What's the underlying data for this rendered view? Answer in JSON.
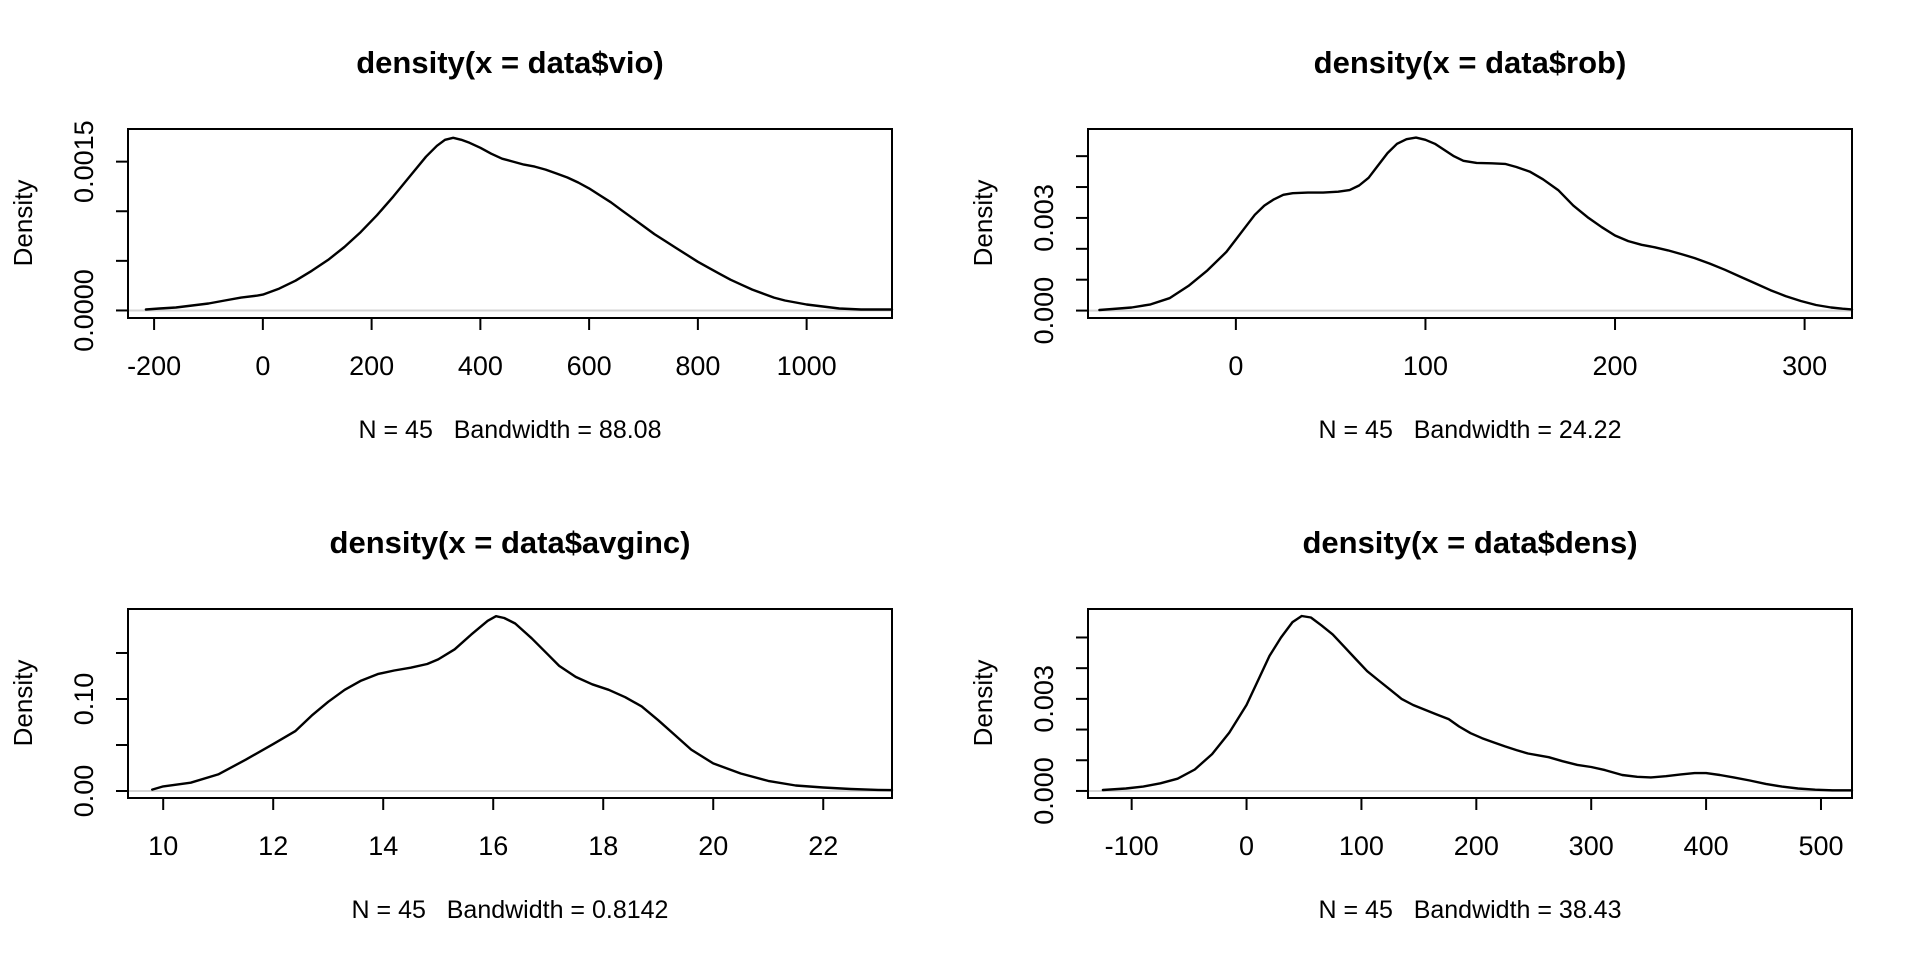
{
  "figure": {
    "background": "#ffffff",
    "curve_color": "#000000",
    "box_color": "#000000",
    "zero_line_color": "#d3d3d3",
    "text_color": "#000000"
  },
  "chart_data": [
    {
      "type": "line",
      "title": "density(x = data$vio)",
      "xlabel": "N = 45   Bandwidth = 88.08",
      "ylabel": "Density",
      "n": 45,
      "bandwidth": 88.08,
      "legend": "none",
      "grid": false,
      "xlim": [
        -248,
        1157
      ],
      "ylim": [
        -7.6e-05,
        0.001829
      ],
      "x_ticks": {
        "values": [
          -200,
          0,
          200,
          400,
          600,
          800,
          1000
        ],
        "labels": [
          "-200",
          "0",
          "200",
          "400",
          "600",
          "800",
          "1000"
        ]
      },
      "y_ticks": {
        "values": [
          0,
          0.0005,
          0.001,
          0.0015
        ],
        "labels": [
          "0.0000",
          "",
          "",
          "0.0015"
        ]
      },
      "curve": [
        [
          -215,
          1e-05
        ],
        [
          -190,
          2e-05
        ],
        [
          -160,
          3e-05
        ],
        [
          -130,
          5e-05
        ],
        [
          -100,
          7e-05
        ],
        [
          -70,
          0.0001
        ],
        [
          -40,
          0.00013
        ],
        [
          -10,
          0.00015
        ],
        [
          0,
          0.00016
        ],
        [
          30,
          0.00022
        ],
        [
          60,
          0.0003
        ],
        [
          90,
          0.0004
        ],
        [
          120,
          0.00051
        ],
        [
          150,
          0.00064
        ],
        [
          180,
          0.00079
        ],
        [
          210,
          0.00096
        ],
        [
          240,
          0.00115
        ],
        [
          270,
          0.00135
        ],
        [
          300,
          0.00155
        ],
        [
          320,
          0.00166
        ],
        [
          335,
          0.00172
        ],
        [
          350,
          0.00174
        ],
        [
          365,
          0.00172
        ],
        [
          380,
          0.00169
        ],
        [
          400,
          0.00164
        ],
        [
          420,
          0.00158
        ],
        [
          440,
          0.00153
        ],
        [
          460,
          0.0015
        ],
        [
          480,
          0.00147
        ],
        [
          500,
          0.00145
        ],
        [
          520,
          0.00142
        ],
        [
          540,
          0.00138
        ],
        [
          560,
          0.00134
        ],
        [
          580,
          0.00129
        ],
        [
          600,
          0.00123
        ],
        [
          620,
          0.00116
        ],
        [
          640,
          0.00109
        ],
        [
          660,
          0.00101
        ],
        [
          680,
          0.00093
        ],
        [
          700,
          0.00085
        ],
        [
          720,
          0.00077
        ],
        [
          740,
          0.0007
        ],
        [
          760,
          0.00063
        ],
        [
          780,
          0.00056
        ],
        [
          800,
          0.00049
        ],
        [
          820,
          0.00043
        ],
        [
          840,
          0.00037
        ],
        [
          860,
          0.00031
        ],
        [
          880,
          0.00026
        ],
        [
          900,
          0.00021
        ],
        [
          920,
          0.00017
        ],
        [
          940,
          0.00013
        ],
        [
          960,
          0.0001
        ],
        [
          980,
          8e-05
        ],
        [
          1000,
          6e-05
        ],
        [
          1030,
          4e-05
        ],
        [
          1060,
          2e-05
        ],
        [
          1100,
          1e-05
        ],
        [
          1157,
          1e-05
        ]
      ]
    },
    {
      "type": "line",
      "title": "density(x = data$rob)",
      "xlabel": "N = 45   Bandwidth = 24.22",
      "ylabel": "Density",
      "n": 45,
      "bandwidth": 24.22,
      "legend": "none",
      "grid": false,
      "xlim": [
        -78,
        325
      ],
      "ylim": [
        -0.00024,
        0.005879
      ],
      "x_ticks": {
        "values": [
          0,
          100,
          200,
          300
        ],
        "labels": [
          "0",
          "100",
          "200",
          "300"
        ]
      },
      "y_ticks": {
        "values": [
          0,
          0.001,
          0.002,
          0.003,
          0.004,
          0.005
        ],
        "labels": [
          "0.000",
          "",
          "",
          "0.003",
          "",
          ""
        ]
      },
      "curve": [
        [
          -72,
          2e-05
        ],
        [
          -65,
          5e-05
        ],
        [
          -55,
          0.0001
        ],
        [
          -45,
          0.0002
        ],
        [
          -35,
          0.0004
        ],
        [
          -25,
          0.0008
        ],
        [
          -15,
          0.0013
        ],
        [
          -5,
          0.0019
        ],
        [
          0,
          0.0023
        ],
        [
          5,
          0.0027
        ],
        [
          10,
          0.0031
        ],
        [
          15,
          0.0034
        ],
        [
          20,
          0.0036
        ],
        [
          25,
          0.00375
        ],
        [
          30,
          0.0038
        ],
        [
          38,
          0.00382
        ],
        [
          46,
          0.00382
        ],
        [
          54,
          0.00385
        ],
        [
          60,
          0.0039
        ],
        [
          65,
          0.00405
        ],
        [
          70,
          0.0043
        ],
        [
          75,
          0.0047
        ],
        [
          80,
          0.0051
        ],
        [
          85,
          0.0054
        ],
        [
          90,
          0.00555
        ],
        [
          95,
          0.0056
        ],
        [
          100,
          0.00553
        ],
        [
          105,
          0.0054
        ],
        [
          110,
          0.0052
        ],
        [
          115,
          0.005
        ],
        [
          120,
          0.00485
        ],
        [
          127,
          0.00478
        ],
        [
          135,
          0.00477
        ],
        [
          142,
          0.00475
        ],
        [
          148,
          0.00465
        ],
        [
          155,
          0.0045
        ],
        [
          162,
          0.00425
        ],
        [
          170,
          0.0039
        ],
        [
          178,
          0.0034
        ],
        [
          186,
          0.003
        ],
        [
          193,
          0.0027
        ],
        [
          200,
          0.00243
        ],
        [
          207,
          0.00225
        ],
        [
          214,
          0.00213
        ],
        [
          221,
          0.00205
        ],
        [
          228,
          0.00195
        ],
        [
          235,
          0.00183
        ],
        [
          242,
          0.0017
        ],
        [
          250,
          0.00152
        ],
        [
          258,
          0.00132
        ],
        [
          266,
          0.0011
        ],
        [
          274,
          0.00088
        ],
        [
          282,
          0.00066
        ],
        [
          290,
          0.00047
        ],
        [
          298,
          0.00031
        ],
        [
          306,
          0.00018
        ],
        [
          314,
          0.0001
        ],
        [
          320,
          6e-05
        ],
        [
          325,
          4e-05
        ]
      ]
    },
    {
      "type": "line",
      "title": "density(x = data$avginc)",
      "xlabel": "N = 45   Bandwidth = 0.8142",
      "ylabel": "Density",
      "n": 45,
      "bandwidth": 0.8142,
      "legend": "none",
      "grid": false,
      "xlim": [
        9.36,
        23.25
      ],
      "ylim": [
        -0.0076,
        0.1978
      ],
      "x_ticks": {
        "values": [
          10,
          12,
          14,
          16,
          18,
          20,
          22
        ],
        "labels": [
          "10",
          "12",
          "14",
          "16",
          "18",
          "20",
          "22"
        ]
      },
      "y_ticks": {
        "values": [
          0,
          0.05,
          0.1,
          0.15
        ],
        "labels": [
          "0.00",
          "",
          "0.10",
          ""
        ]
      },
      "curve": [
        [
          9.8,
          0.0015
        ],
        [
          10,
          0.005
        ],
        [
          10.5,
          0.009
        ],
        [
          11,
          0.018
        ],
        [
          11.5,
          0.034
        ],
        [
          12,
          0.051
        ],
        [
          12.4,
          0.065
        ],
        [
          12.7,
          0.082
        ],
        [
          13,
          0.097
        ],
        [
          13.3,
          0.11
        ],
        [
          13.6,
          0.12
        ],
        [
          13.9,
          0.127
        ],
        [
          14.2,
          0.131
        ],
        [
          14.5,
          0.134
        ],
        [
          14.8,
          0.138
        ],
        [
          15,
          0.143
        ],
        [
          15.3,
          0.154
        ],
        [
          15.6,
          0.17
        ],
        [
          15.9,
          0.185
        ],
        [
          16.05,
          0.19
        ],
        [
          16.2,
          0.188
        ],
        [
          16.4,
          0.182
        ],
        [
          16.7,
          0.166
        ],
        [
          17,
          0.148
        ],
        [
          17.2,
          0.136
        ],
        [
          17.5,
          0.124
        ],
        [
          17.8,
          0.116
        ],
        [
          18.1,
          0.11
        ],
        [
          18.4,
          0.102
        ],
        [
          18.7,
          0.092
        ],
        [
          19,
          0.077
        ],
        [
          19.3,
          0.061
        ],
        [
          19.6,
          0.045
        ],
        [
          20,
          0.03
        ],
        [
          20.5,
          0.019
        ],
        [
          21,
          0.011
        ],
        [
          21.5,
          0.006
        ],
        [
          22,
          0.0038
        ],
        [
          22.5,
          0.0022
        ],
        [
          23,
          0.0012
        ],
        [
          23.25,
          0.001
        ]
      ]
    },
    {
      "type": "line",
      "title": "density(x = data$dens)",
      "xlabel": "N = 45   Bandwidth = 38.43",
      "ylabel": "Density",
      "n": 45,
      "bandwidth": 38.43,
      "legend": "none",
      "grid": false,
      "xlim": [
        -138,
        527
      ],
      "ylim": [
        -0.00023,
        0.005928
      ],
      "x_ticks": {
        "values": [
          -100,
          0,
          100,
          200,
          300,
          400,
          500
        ],
        "labels": [
          "-100",
          "0",
          "100",
          "200",
          "300",
          "400",
          "500"
        ]
      },
      "y_ticks": {
        "values": [
          0,
          0.001,
          0.002,
          0.003,
          0.004,
          0.005
        ],
        "labels": [
          "0.000",
          "",
          "",
          "0.003",
          "",
          ""
        ]
      },
      "curve": [
        [
          -125,
          3e-05
        ],
        [
          -105,
          8e-05
        ],
        [
          -90,
          0.00014
        ],
        [
          -75,
          0.00025
        ],
        [
          -60,
          0.0004
        ],
        [
          -45,
          0.0007
        ],
        [
          -30,
          0.0012
        ],
        [
          -15,
          0.0019
        ],
        [
          0,
          0.0028
        ],
        [
          10,
          0.0036
        ],
        [
          20,
          0.0044
        ],
        [
          30,
          0.005
        ],
        [
          40,
          0.0055
        ],
        [
          48,
          0.0057
        ],
        [
          56,
          0.00565
        ],
        [
          65,
          0.0054
        ],
        [
          75,
          0.0051
        ],
        [
          85,
          0.0047
        ],
        [
          95,
          0.0043
        ],
        [
          105,
          0.0039
        ],
        [
          115,
          0.0036
        ],
        [
          125,
          0.0033
        ],
        [
          135,
          0.003
        ],
        [
          145,
          0.0028
        ],
        [
          155,
          0.00265
        ],
        [
          165,
          0.0025
        ],
        [
          176,
          0.00234
        ],
        [
          185,
          0.0021
        ],
        [
          195,
          0.00188
        ],
        [
          205,
          0.00172
        ],
        [
          215,
          0.00158
        ],
        [
          225,
          0.00145
        ],
        [
          235,
          0.00133
        ],
        [
          245,
          0.00122
        ],
        [
          255,
          0.00115
        ],
        [
          263,
          0.0011
        ],
        [
          275,
          0.00097
        ],
        [
          288,
          0.00085
        ],
        [
          300,
          0.00078
        ],
        [
          312,
          0.00068
        ],
        [
          327,
          0.00052
        ],
        [
          340,
          0.00046
        ],
        [
          352,
          0.00044
        ],
        [
          365,
          0.00048
        ],
        [
          378,
          0.00054
        ],
        [
          390,
          0.00058
        ],
        [
          400,
          0.00058
        ],
        [
          412,
          0.00052
        ],
        [
          424,
          0.00044
        ],
        [
          438,
          0.00034
        ],
        [
          452,
          0.00023
        ],
        [
          466,
          0.00014
        ],
        [
          480,
          8e-05
        ],
        [
          495,
          4e-05
        ],
        [
          510,
          2e-05
        ],
        [
          527,
          2e-05
        ]
      ]
    }
  ]
}
